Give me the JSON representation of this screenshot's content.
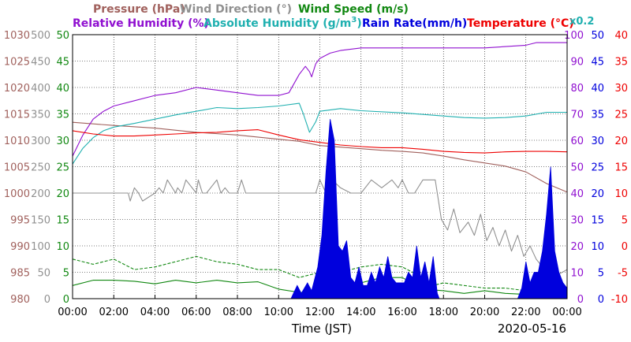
{
  "legend": {
    "pressure": "Pressure (hPa)",
    "wind_direction": "Wind Direction (°)",
    "wind_speed": "Wind Speed (m/s)",
    "relative_humidity": "Relative Humidity (%)",
    "absolute_humidity_label": "Absolute Humidity (g/m",
    "absolute_humidity_sup": "3",
    "absolute_humidity_close": ")",
    "rain_rate": "Rain Rate(mm/h)",
    "temperature": "Temperature (°C)",
    "scale_note": "x0.2"
  },
  "colors": {
    "pressure": "#a0605c",
    "wind_direction": "#909090",
    "wind_speed": "#118811",
    "relative_humidity": "#9010d0",
    "absolute_humidity": "#20b0b0",
    "rain_rate": "#0000dd",
    "temperature": "#ee0000",
    "grid": "#000000"
  },
  "chart_data": {
    "type": "line",
    "xlabel": "Time (JST)",
    "date": "2020-05-16",
    "x_ticks": [
      "00:00",
      "02:00",
      "04:00",
      "06:00",
      "08:00",
      "10:00",
      "12:00",
      "14:00",
      "16:00",
      "18:00",
      "20:00",
      "22:00",
      "00:00"
    ],
    "x_range_hours": [
      0,
      24
    ],
    "grid": true,
    "axes": {
      "pressure": {
        "ticks": [
          "980",
          "985",
          "990",
          "995",
          "1000",
          "1005",
          "1010",
          "1015",
          "1020",
          "1025",
          "1030"
        ],
        "range": [
          980,
          1030
        ]
      },
      "wind_direction": {
        "ticks": [
          "0",
          "50",
          "100",
          "150",
          "200",
          "250",
          "300",
          "350",
          "400",
          "450",
          "500"
        ],
        "range": [
          0,
          500
        ]
      },
      "wind_speed": {
        "ticks": [
          "0",
          "5",
          "10",
          "15",
          "20",
          "25",
          "30",
          "35",
          "40",
          "45",
          "50"
        ],
        "range": [
          0,
          50
        ]
      },
      "relative_humidity": {
        "ticks": [
          "0",
          "10",
          "20",
          "30",
          "40",
          "50",
          "60",
          "70",
          "80",
          "90",
          "100"
        ],
        "range": [
          0,
          100
        ]
      },
      "rain_rate": {
        "ticks": [
          "0",
          "5",
          "10",
          "15",
          "20",
          "25",
          "30",
          "35",
          "40",
          "45",
          "50"
        ],
        "range": [
          0,
          50
        ]
      },
      "temperature": {
        "ticks": [
          "-10",
          "-5",
          "0",
          "5",
          "10",
          "15",
          "20",
          "25",
          "30",
          "35",
          "40"
        ],
        "range": [
          -10,
          40
        ]
      }
    },
    "series": [
      {
        "key": "pressure",
        "name": "Pressure (hPa)",
        "axis": "pressure",
        "x": [
          0,
          2,
          4,
          6,
          8,
          10,
          11,
          12,
          13,
          14,
          15,
          16,
          17,
          18,
          19,
          20,
          21,
          22,
          23,
          24
        ],
        "y": [
          1013.4,
          1012.8,
          1012.3,
          1011.5,
          1011.0,
          1010.2,
          1009.8,
          1009.0,
          1008.7,
          1008.4,
          1008.1,
          1007.9,
          1007.6,
          1007.0,
          1006.3,
          1005.7,
          1005.1,
          1004.0,
          1001.8,
          1000.2
        ]
      },
      {
        "key": "relative_humidity",
        "name": "Relative Humidity (%)",
        "axis": "relative_humidity",
        "x": [
          0,
          0.5,
          1,
          1.5,
          2,
          3,
          4,
          5,
          6,
          7,
          8,
          9,
          10,
          10.5,
          11,
          11.3,
          11.5,
          11.6,
          11.8,
          12,
          12.5,
          13,
          14,
          16,
          18,
          20,
          22,
          22.5,
          24
        ],
        "y": [
          54,
          62,
          68,
          71,
          73,
          75,
          77,
          78,
          80,
          79,
          78,
          77,
          77,
          78,
          85,
          88,
          86,
          84,
          89,
          91,
          93,
          94,
          95,
          95,
          95,
          95,
          96,
          97,
          97
        ]
      },
      {
        "key": "absolute_humidity",
        "name": "Absolute Humidity (g/m3)",
        "axis": "wind_speed",
        "x": [
          0,
          0.5,
          1,
          1.5,
          2,
          3,
          4,
          5,
          6,
          7,
          8,
          9,
          10,
          11,
          11.2,
          11.5,
          11.8,
          12,
          13,
          14,
          16,
          18,
          19,
          20,
          21,
          22,
          23,
          24
        ],
        "y": [
          25.5,
          28.5,
          30.5,
          31.8,
          32.5,
          33.2,
          34.0,
          34.8,
          35.5,
          36.2,
          36.0,
          36.2,
          36.5,
          37.0,
          35.0,
          31.5,
          33.5,
          35.5,
          36.0,
          35.6,
          35.2,
          34.6,
          34.3,
          34.2,
          34.3,
          34.6,
          35.3,
          35.3
        ]
      },
      {
        "key": "temperature",
        "name": "Temperature (°C)",
        "axis": "temperature",
        "x": [
          0,
          1,
          2,
          3,
          4,
          5,
          6,
          7,
          8,
          9,
          10,
          11,
          12,
          13,
          14,
          15,
          16,
          17,
          18,
          19,
          20,
          21,
          22,
          23,
          24
        ],
        "y": [
          21.8,
          21.2,
          20.8,
          20.8,
          21.0,
          21.2,
          21.4,
          21.5,
          21.8,
          22.0,
          21.0,
          20.1,
          19.6,
          19.1,
          18.8,
          18.6,
          18.6,
          18.3,
          17.9,
          17.7,
          17.6,
          17.8,
          17.9,
          17.9,
          17.8
        ]
      },
      {
        "key": "wind_direction",
        "name": "Wind Direction (°)",
        "axis": "wind_direction",
        "x": [
          0,
          2.7,
          2.8,
          3.0,
          3.2,
          3.4,
          4.0,
          4.2,
          4.4,
          4.6,
          5.0,
          5.1,
          5.3,
          5.5,
          6.0,
          6.1,
          6.3,
          6.5,
          7.0,
          7.2,
          7.4,
          7.6,
          8.0,
          8.2,
          8.4,
          9.0,
          10.0,
          11.0,
          11.8,
          12.0,
          12.3,
          12.6,
          13.0,
          13.5,
          14.0,
          14.5,
          15.0,
          15.5,
          15.8,
          16.0,
          16.3,
          16.6,
          17.0,
          17.6,
          17.9,
          18.2,
          18.5,
          18.8,
          19.2,
          19.5,
          19.8,
          20.1,
          20.4,
          20.7,
          21.0,
          21.3,
          21.6,
          21.9,
          22.2,
          22.5,
          22.8,
          23.0,
          23.3,
          24
        ],
        "y": [
          200,
          200,
          185,
          210,
          200,
          185,
          200,
          210,
          200,
          225,
          200,
          210,
          200,
          225,
          200,
          225,
          200,
          200,
          225,
          200,
          210,
          200,
          200,
          225,
          200,
          200,
          200,
          200,
          200,
          225,
          200,
          225,
          210,
          200,
          200,
          225,
          210,
          225,
          210,
          225,
          200,
          200,
          225,
          225,
          150,
          130,
          170,
          125,
          145,
          120,
          160,
          110,
          135,
          100,
          130,
          90,
          120,
          80,
          100,
          75,
          60,
          50,
          40,
          55
        ]
      },
      {
        "key": "wind_speed",
        "name": "Wind Speed (m/s)",
        "axis": "wind_speed",
        "x": [
          0,
          1,
          2,
          3,
          4,
          5,
          6,
          7,
          8,
          9,
          10,
          11,
          12,
          13,
          14,
          15,
          16,
          17,
          18,
          19,
          20,
          21,
          22,
          23,
          24
        ],
        "y": [
          2.5,
          3.5,
          3.5,
          3.3,
          2.8,
          3.5,
          3.0,
          3.5,
          3.0,
          3.2,
          1.8,
          1.2,
          1.2,
          2.0,
          3.0,
          4.0,
          4.0,
          1.8,
          1.5,
          1.0,
          1.5,
          1.0,
          0.8,
          0.6,
          0.5
        ]
      },
      {
        "key": "wind_gust",
        "name": "Wind Speed (m/s)",
        "axis": "wind_speed",
        "dashed": true,
        "x": [
          0,
          1,
          2,
          3,
          4,
          5,
          6,
          7,
          8,
          9,
          10,
          11,
          11.5,
          12,
          13,
          14,
          15,
          16,
          17,
          17.5,
          18,
          19,
          20,
          21,
          22,
          23,
          24
        ],
        "y": [
          7.5,
          6.5,
          7.5,
          5.5,
          6.0,
          7.0,
          8.0,
          7.0,
          6.5,
          5.5,
          5.5,
          4.0,
          4.5,
          5.0,
          5.0,
          6.0,
          6.5,
          6.0,
          4.0,
          2.5,
          3.0,
          2.5,
          2.0,
          2.0,
          1.5,
          1.0,
          1.0
        ]
      },
      {
        "key": "rain_rate",
        "name": "Rain Rate(mm/h)",
        "axis": "rain_rate",
        "type": "area",
        "x": [
          10.6,
          10.9,
          11.1,
          11.4,
          11.6,
          11.9,
          12.1,
          12.3,
          12.5,
          12.7,
          12.9,
          13.1,
          13.3,
          13.5,
          13.7,
          13.9,
          14.1,
          14.3,
          14.5,
          14.7,
          14.9,
          15.1,
          15.3,
          15.5,
          15.7,
          15.9,
          16.1,
          16.3,
          16.5,
          16.7,
          16.9,
          17.1,
          17.3,
          17.5,
          17.7,
          17.8,
          21.6,
          21.8,
          22.0,
          22.2,
          22.4,
          22.6,
          22.8,
          23.0,
          23.2,
          23.4,
          23.6,
          23.8,
          24.0
        ],
        "y": [
          0,
          2.5,
          1,
          3,
          1.5,
          6,
          12,
          24,
          34,
          30,
          10,
          9,
          11,
          4,
          3,
          6,
          2.5,
          2.5,
          5,
          3,
          6,
          4,
          8,
          4,
          3,
          3,
          3,
          5,
          4,
          10,
          4,
          7,
          3,
          8,
          1,
          0,
          0,
          2,
          7,
          3,
          5,
          5,
          9,
          16,
          25,
          9,
          5,
          3,
          2
        ]
      }
    ]
  }
}
